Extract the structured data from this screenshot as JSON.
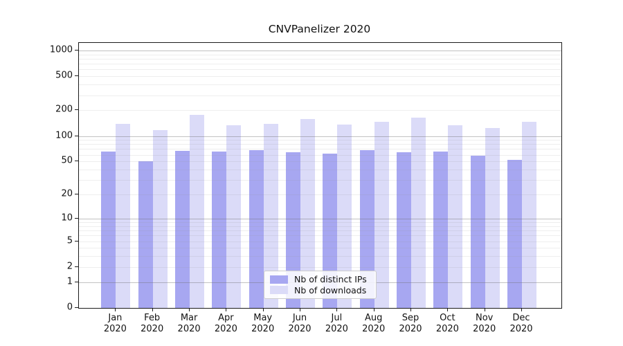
{
  "figure": {
    "title": "CNVPanelizer 2020"
  },
  "chart_data": {
    "type": "bar",
    "title": "CNVPanelizer 2020",
    "categories": [
      "Jan",
      "Feb",
      "Mar",
      "Apr",
      "May",
      "Jun",
      "Jul",
      "Aug",
      "Sep",
      "Oct",
      "Nov",
      "Dec"
    ],
    "category_year": "2020",
    "series": [
      {
        "name": "Nb of distinct IPs",
        "color": "#a7a7f1",
        "values": [
          65,
          50,
          67,
          66,
          68,
          64,
          62,
          68,
          64,
          66,
          58,
          52
        ]
      },
      {
        "name": "Nb of downloads",
        "color": "#dbdbf8",
        "values": [
          138,
          117,
          177,
          133,
          138,
          158,
          135,
          146,
          164,
          134,
          123,
          146
        ]
      }
    ],
    "xlabel": "",
    "ylabel": "",
    "y_axis": {
      "scale": "log10(value+1)",
      "tick_values": [
        1000,
        500,
        200,
        100,
        50,
        20,
        10,
        5,
        2,
        1,
        0
      ],
      "major_grid_values": [
        1,
        10,
        100,
        1000
      ],
      "minor_grid_values": [
        2,
        3,
        4,
        5,
        6,
        7,
        8,
        9,
        20,
        30,
        40,
        50,
        60,
        70,
        80,
        90,
        200,
        300,
        400,
        500,
        600,
        700,
        800,
        900
      ],
      "range": [
        0,
        1000
      ]
    },
    "grid": "on",
    "legend_position": "inside-bottom-center"
  },
  "legend": {
    "items": [
      {
        "label": "Nb of distinct IPs",
        "color": "#a7a7f1"
      },
      {
        "label": "Nb of downloads",
        "color": "#dbdbf8"
      }
    ]
  },
  "colors": {
    "distinct_ips_bar": "#a7a7f1",
    "downloads_bar": "#dbdbf8",
    "axis_spine": "#1a1a1a",
    "major_grid": "#b4b4b4",
    "minor_grid": "#e6e6e6",
    "background": "#ffffff"
  }
}
